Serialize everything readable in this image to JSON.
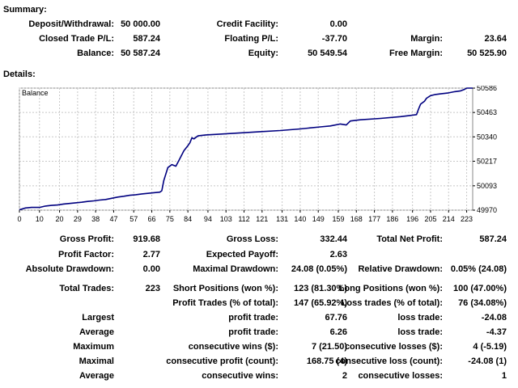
{
  "summary": {
    "title": "Summary:",
    "rows": [
      [
        {
          "label": "Deposit/Withdrawal:",
          "value": "50 000.00"
        },
        {
          "label": "Credit Facility:",
          "value": "0.00"
        },
        {
          "label": "",
          "value": ""
        }
      ],
      [
        {
          "label": "Closed Trade P/L:",
          "value": "587.24"
        },
        {
          "label": "Floating P/L:",
          "value": "-37.70"
        },
        {
          "label": "Margin:",
          "value": "23.64"
        }
      ],
      [
        {
          "label": "Balance:",
          "value": "50 587.24"
        },
        {
          "label": "Equity:",
          "value": "50 549.54"
        },
        {
          "label": "Free Margin:",
          "value": "50 525.90"
        }
      ]
    ]
  },
  "details": {
    "title": "Details:",
    "rows": [
      [
        {
          "label": "Gross Profit:",
          "value": "919.68"
        },
        {
          "label": "Gross Loss:",
          "value": "332.44"
        },
        {
          "label": "Total Net Profit:",
          "value": "587.24"
        }
      ],
      [
        {
          "label": "Profit Factor:",
          "value": "2.77"
        },
        {
          "label": "Expected Payoff:",
          "value": "2.63"
        },
        {
          "label": "",
          "value": ""
        }
      ],
      [
        {
          "label": "Absolute Drawdown:",
          "value": "0.00"
        },
        {
          "label": "Maximal Drawdown:",
          "value": "24.08 (0.05%)"
        },
        {
          "label": "Relative Drawdown:",
          "value": "0.05% (24.08)"
        }
      ],
      [
        {
          "label": "Total Trades:",
          "value": "223"
        },
        {
          "label": "Short Positions (won %):",
          "value": "123 (81.30%)"
        },
        {
          "label": "Long Positions (won %):",
          "value": "100 (47.00%)"
        }
      ],
      [
        {
          "label": "",
          "value": ""
        },
        {
          "label": "Profit Trades (% of total):",
          "value": "147 (65.92%)"
        },
        {
          "label": "Loss trades (% of total):",
          "value": "76 (34.08%)"
        }
      ],
      [
        {
          "label": "Largest",
          "value": ""
        },
        {
          "label": "profit trade:",
          "value": "67.76"
        },
        {
          "label": "loss trade:",
          "value": "-24.08"
        }
      ],
      [
        {
          "label": "Average",
          "value": ""
        },
        {
          "label": "profit trade:",
          "value": "6.26"
        },
        {
          "label": "loss trade:",
          "value": "-4.37"
        }
      ],
      [
        {
          "label": "Maximum",
          "value": ""
        },
        {
          "label": "consecutive wins ($):",
          "value": "7 (21.50)"
        },
        {
          "label": "consecutive losses ($):",
          "value": "4 (-5.19)"
        }
      ],
      [
        {
          "label": "Maximal",
          "value": ""
        },
        {
          "label": "consecutive profit (count):",
          "value": "168.75 (4)"
        },
        {
          "label": "consecutive loss (count):",
          "value": "-24.08 (1)"
        }
      ],
      [
        {
          "label": "Average",
          "value": ""
        },
        {
          "label": "consecutive wins:",
          "value": "2"
        },
        {
          "label": "consecutive losses:",
          "value": "1"
        }
      ]
    ]
  },
  "chart_data": {
    "type": "line",
    "series_label": "Balance",
    "x_ticks": [
      0,
      10,
      20,
      29,
      38,
      47,
      57,
      66,
      75,
      84,
      94,
      103,
      112,
      121,
      131,
      140,
      149,
      159,
      168,
      177,
      186,
      196,
      205,
      214,
      223
    ],
    "y_ticks": [
      49970,
      50093,
      50217,
      50340,
      50463,
      50586
    ],
    "xlim": [
      0,
      226
    ],
    "ylim": [
      49970,
      50586
    ],
    "grid": true,
    "line_color": "#000080",
    "points": [
      [
        0,
        49972
      ],
      [
        3,
        49981
      ],
      [
        6,
        49984
      ],
      [
        10,
        49984
      ],
      [
        13,
        49991
      ],
      [
        16,
        49994
      ],
      [
        19,
        49996
      ],
      [
        22,
        50001
      ],
      [
        25,
        50004
      ],
      [
        28,
        50007
      ],
      [
        31,
        50010
      ],
      [
        34,
        50014
      ],
      [
        37,
        50017
      ],
      [
        40,
        50021
      ],
      [
        43,
        50024
      ],
      [
        46,
        50030
      ],
      [
        49,
        50036
      ],
      [
        52,
        50040
      ],
      [
        55,
        50045
      ],
      [
        58,
        50048
      ],
      [
        61,
        50052
      ],
      [
        64,
        50055
      ],
      [
        67,
        50058
      ],
      [
        70,
        50061
      ],
      [
        71,
        50068
      ],
      [
        72,
        50120
      ],
      [
        74,
        50185
      ],
      [
        76,
        50200
      ],
      [
        78,
        50192
      ],
      [
        80,
        50230
      ],
      [
        82,
        50270
      ],
      [
        84,
        50295
      ],
      [
        85,
        50310
      ],
      [
        86,
        50335
      ],
      [
        87,
        50330
      ],
      [
        89,
        50345
      ],
      [
        93,
        50350
      ],
      [
        100,
        50354
      ],
      [
        110,
        50360
      ],
      [
        120,
        50366
      ],
      [
        130,
        50372
      ],
      [
        140,
        50380
      ],
      [
        150,
        50390
      ],
      [
        155,
        50395
      ],
      [
        160,
        50405
      ],
      [
        163,
        50400
      ],
      [
        165,
        50420
      ],
      [
        170,
        50426
      ],
      [
        180,
        50433
      ],
      [
        190,
        50442
      ],
      [
        195,
        50448
      ],
      [
        198,
        50452
      ],
      [
        199,
        50480
      ],
      [
        200,
        50505
      ],
      [
        202,
        50520
      ],
      [
        203,
        50535
      ],
      [
        205,
        50548
      ],
      [
        207,
        50553
      ],
      [
        210,
        50557
      ],
      [
        214,
        50562
      ],
      [
        217,
        50568
      ],
      [
        220,
        50572
      ],
      [
        222,
        50580
      ],
      [
        223,
        50586
      ],
      [
        226,
        50586
      ]
    ]
  }
}
